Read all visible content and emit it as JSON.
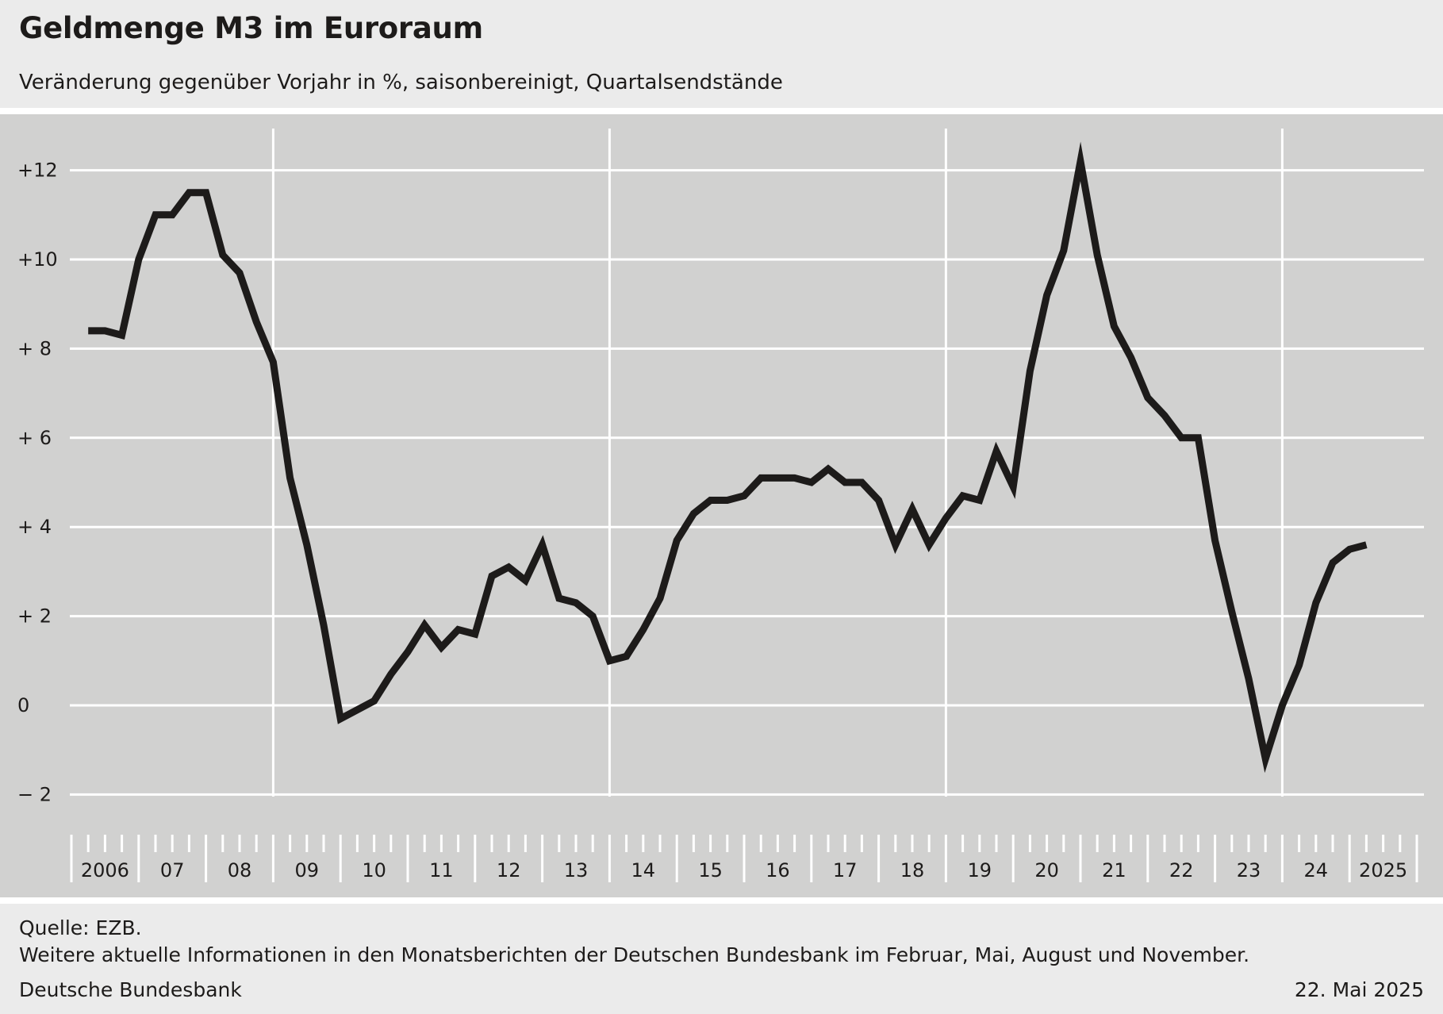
{
  "header": {
    "title": "Geldmenge M3 im Euroraum",
    "subtitle": "Veränderung gegenüber Vorjahr in %, saisonbereinigt, Quartalsendstände"
  },
  "footer": {
    "source": "Quelle: EZB.",
    "info": "Weitere aktuelle Informationen in den Monatsberichten der Deutschen Bundesbank im Februar, Mai, August und November.",
    "publisher": "Deutsche Bundesbank",
    "date": "22. Mai 2025"
  },
  "colors": {
    "plot_background": "#d1d1d0",
    "page_background": "#ebebeb",
    "grid": "#ffffff",
    "line": "#1d1b1a"
  },
  "chart_data": {
    "type": "line",
    "title": "Geldmenge M3 im Euroraum",
    "subtitle": "Veränderung gegenüber Vorjahr in %, saisonbereinigt, Quartalsendstände",
    "xlabel": "",
    "ylabel": "",
    "ylim": [
      -3,
      13
    ],
    "xlim": [
      "2006-01",
      "2025-12"
    ],
    "yticks": [
      {
        "value": 12,
        "label": "+12"
      },
      {
        "value": 10,
        "label": "+10"
      },
      {
        "value": 8,
        "label": "+  8"
      },
      {
        "value": 6,
        "label": "+  6"
      },
      {
        "value": 4,
        "label": "+  4"
      },
      {
        "value": 2,
        "label": "+  2"
      },
      {
        "value": 0,
        "label": "0"
      },
      {
        "value": -2,
        "label": "−  2"
      }
    ],
    "year_labels": [
      "2006",
      "07",
      "08",
      "09",
      "10",
      "11",
      "12",
      "13",
      "14",
      "15",
      "16",
      "17",
      "18",
      "19",
      "20",
      "21",
      "22",
      "23",
      "24",
      "2025"
    ],
    "major_vertical_gridlines_after_years": [
      "2008",
      "2013",
      "2018",
      "2023"
    ],
    "grid": true,
    "x": [
      "2006Q1",
      "2006Q2",
      "2006Q3",
      "2006Q4",
      "2007Q1",
      "2007Q2",
      "2007Q3",
      "2007Q4",
      "2008Q1",
      "2008Q2",
      "2008Q3",
      "2008Q4",
      "2009Q1",
      "2009Q2",
      "2009Q3",
      "2009Q4",
      "2010Q1",
      "2010Q2",
      "2010Q3",
      "2010Q4",
      "2011Q1",
      "2011Q2",
      "2011Q3",
      "2011Q4",
      "2012Q1",
      "2012Q2",
      "2012Q3",
      "2012Q4",
      "2013Q1",
      "2013Q2",
      "2013Q3",
      "2013Q4",
      "2014Q1",
      "2014Q2",
      "2014Q3",
      "2014Q4",
      "2015Q1",
      "2015Q2",
      "2015Q3",
      "2015Q4",
      "2016Q1",
      "2016Q2",
      "2016Q3",
      "2016Q4",
      "2017Q1",
      "2017Q2",
      "2017Q3",
      "2017Q4",
      "2018Q1",
      "2018Q2",
      "2018Q3",
      "2018Q4",
      "2019Q1",
      "2019Q2",
      "2019Q3",
      "2019Q4",
      "2020Q1",
      "2020Q2",
      "2020Q3",
      "2020Q4",
      "2021Q1",
      "2021Q2",
      "2021Q3",
      "2021Q4",
      "2022Q1",
      "2022Q2",
      "2022Q3",
      "2022Q4",
      "2023Q1",
      "2023Q2",
      "2023Q3",
      "2023Q4",
      "2024Q1",
      "2024Q2",
      "2024Q3",
      "2024Q4",
      "2025Q1"
    ],
    "series": [
      {
        "values": [
          8.4,
          8.4,
          8.3,
          10.0,
          11.0,
          11.0,
          11.5,
          11.5,
          10.1,
          9.7,
          8.6,
          7.7,
          5.1,
          3.6,
          1.8,
          -0.3,
          -0.1,
          0.1,
          0.7,
          1.2,
          1.8,
          1.3,
          1.7,
          1.6,
          2.9,
          3.1,
          2.8,
          3.6,
          2.4,
          2.3,
          2.0,
          1.0,
          1.1,
          1.7,
          2.4,
          3.7,
          4.3,
          4.6,
          4.6,
          4.7,
          5.1,
          5.1,
          5.1,
          5.0,
          5.3,
          5.0,
          5.0,
          4.6,
          3.6,
          4.4,
          3.6,
          4.2,
          4.7,
          4.6,
          5.7,
          4.9,
          7.5,
          9.2,
          10.2,
          12.2,
          10.1,
          8.5,
          7.8,
          6.9,
          6.5,
          6.0,
          6.0,
          3.7,
          2.1,
          0.6,
          -1.2,
          0.0,
          0.9,
          2.3,
          3.2,
          3.5,
          3.6
        ]
      }
    ]
  }
}
